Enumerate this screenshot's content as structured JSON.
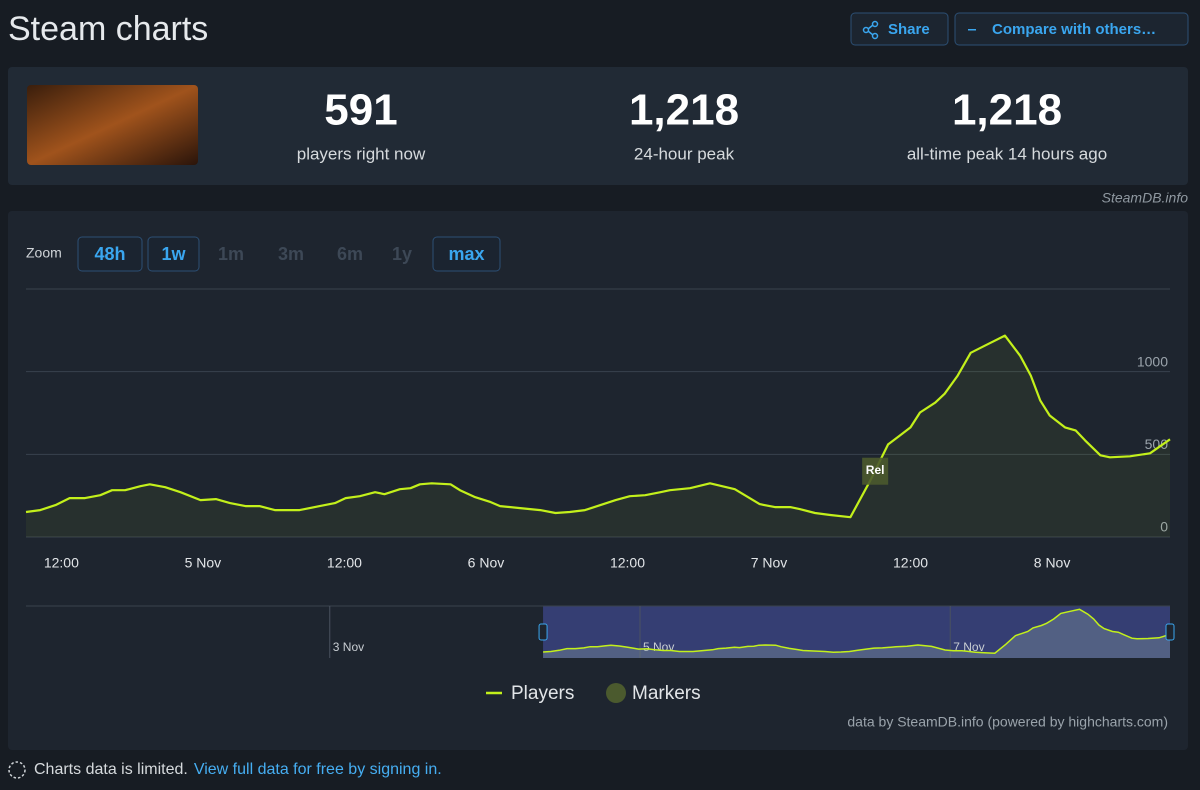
{
  "header": {
    "title": "Steam charts",
    "buttons": [
      "Share",
      "Compare with others…"
    ]
  },
  "stats": [
    {
      "value": "591",
      "label": "players right now"
    },
    {
      "value": "1,218",
      "label": "24-hour peak"
    },
    {
      "value": "1,218",
      "label": "all-time peak 14 hours ago"
    }
  ],
  "source": "SteamDB.info",
  "zoom": {
    "label": "Zoom",
    "options": [
      "48h",
      "1w",
      "1m",
      "3m",
      "6m",
      "1y",
      "max"
    ],
    "enabled": [
      true,
      true,
      false,
      false,
      false,
      false,
      true
    ]
  },
  "chart_data": {
    "type": "line",
    "x": [
      -15.0,
      -13.8,
      -12.5,
      -11.3,
      -10.0,
      -8.7,
      -7.7,
      -6.6,
      -5.3,
      -4.5,
      -3.2,
      -1.9,
      -0.2,
      1.1,
      2.3,
      3.6,
      4.8,
      6.1,
      8.2,
      9.9,
      11.2,
      12.1,
      13.3,
      14.6,
      15.4,
      16.7,
      17.6,
      18.4,
      19.4,
      21.0,
      21.8,
      23.1,
      24.4,
      25.2,
      26.9,
      28.6,
      29.9,
      31.1,
      32.4,
      33.7,
      35.0,
      36.2,
      37.5,
      38.8,
      39.6,
      41.3,
      43.0,
      45.1,
      47.2,
      48.5,
      49.8,
      50.6,
      51.9,
      53.2,
      54.9,
      56.6,
      58.1,
      59.1,
      60.0,
      60.8,
      62.1,
      62.9,
      64.0,
      65.1,
      66.3,
      68.0,
      69.3,
      70.2,
      71.0,
      71.8,
      73.1,
      74.0,
      74.8,
      76.1,
      76.9,
      78.6,
      80.3,
      82.0
    ],
    "series": [
      {
        "name": "Players",
        "color": "#c3f01b",
        "values": [
          151,
          163,
          193,
          235,
          235,
          253,
          283,
          283,
          307,
          319,
          301,
          271,
          223,
          229,
          205,
          187,
          187,
          163,
          163,
          187,
          205,
          235,
          247,
          271,
          259,
          289,
          295,
          319,
          325,
          319,
          283,
          241,
          211,
          187,
          175,
          163,
          145,
          151,
          163,
          193,
          223,
          247,
          253,
          271,
          283,
          295,
          325,
          289,
          199,
          181,
          181,
          169,
          145,
          133,
          120,
          343,
          560,
          614,
          663,
          753,
          813,
          867,
          976,
          1114,
          1157,
          1218,
          1096,
          976,
          825,
          735,
          663,
          645,
          584,
          494,
          482,
          488,
          506,
          591
        ]
      }
    ],
    "markers": {
      "name": "Markers",
      "color": "#4b5a2e",
      "items": [
        {
          "x": 57.0,
          "label": "Rel"
        }
      ]
    },
    "xlim": [
      -15,
      82
    ],
    "ylim": [
      0,
      1500
    ],
    "yticks": [
      0,
      500,
      1000
    ],
    "xticks": [
      {
        "value": -12,
        "label": "12:00"
      },
      {
        "value": 0,
        "label": "5 Nov"
      },
      {
        "value": 12,
        "label": "12:00"
      },
      {
        "value": 24,
        "label": "6 Nov"
      },
      {
        "value": 36,
        "label": "12:00"
      },
      {
        "value": 48,
        "label": "7 Nov"
      },
      {
        "value": 60,
        "label": "12:00"
      },
      {
        "value": 72,
        "label": "8 Nov"
      }
    ],
    "grid": true,
    "navigator": {
      "xlim": [
        -95,
        82
      ],
      "ylim": [
        0,
        1300
      ],
      "xticks": [
        {
          "value": -48,
          "label": "3 Nov"
        },
        {
          "value": 0,
          "label": "5 Nov"
        },
        {
          "value": 48,
          "label": "7 Nov"
        }
      ]
    },
    "credits": "data by SteamDB.info (powered by highcharts.com)"
  },
  "footer": {
    "notice": "Charts data is limited.",
    "link": "View full data for free by signing in."
  }
}
